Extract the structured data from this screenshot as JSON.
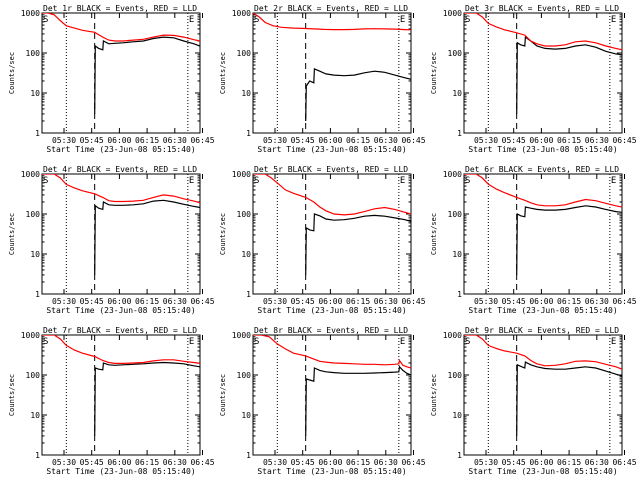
{
  "figure": {
    "shared_xlabel": "Start Time (23-Jun-08 05:15:40)",
    "ylabel": "Counts/sec",
    "x_ticks": [
      "05:30",
      "05:45",
      "06:00",
      "06:15",
      "06:30",
      "06:45"
    ],
    "y_ticks": [
      "1",
      "10",
      "100",
      "1000"
    ],
    "markers": {
      "start": "S",
      "end": "E"
    },
    "colors": {
      "events": "#000000",
      "lld": "#ff0000",
      "axes": "#000000"
    }
  },
  "chart_data": [
    {
      "type": "line",
      "title": "Det 1r BLACK = Events, RED = LLD",
      "xlabel": "Start Time (23-Jun-08 05:15:40)",
      "ylabel": "Counts/sec",
      "x_unit": "minutes after 05:15:40",
      "ylim": [
        1,
        1000
      ],
      "yscale": "log",
      "vlines": {
        "dotted": [
          12,
          72
        ],
        "dashed": [
          26
        ]
      },
      "series": [
        {
          "name": "Events",
          "x": [
            26,
            26.3,
            28,
            30,
            30.3,
            33,
            36,
            40,
            45,
            50,
            55,
            60,
            65,
            70,
            75,
            78
          ],
          "values": [
            3,
            150,
            130,
            120,
            200,
            170,
            175,
            180,
            190,
            200,
            230,
            250,
            240,
            200,
            170,
            150
          ]
        },
        {
          "name": "LLD",
          "x": [
            0,
            3,
            6,
            9,
            12,
            16,
            20,
            26,
            30,
            33,
            36,
            40,
            45,
            50,
            55,
            60,
            65,
            70,
            75,
            78
          ],
          "values": [
            1000,
            1000,
            900,
            650,
            480,
            420,
            370,
            330,
            250,
            210,
            200,
            200,
            210,
            220,
            250,
            280,
            275,
            250,
            215,
            200
          ]
        }
      ]
    },
    {
      "type": "line",
      "title": "Det 2r BLACK = Events, RED = LLD",
      "xlabel": "Start Time (23-Jun-08 05:15:40)",
      "ylabel": "Counts/sec",
      "x_unit": "minutes after 05:15:40",
      "ylim": [
        1,
        1000
      ],
      "yscale": "log",
      "vlines": {
        "dotted": [
          12,
          72
        ],
        "dashed": [
          26
        ]
      },
      "series": [
        {
          "name": "Events",
          "x": [
            26,
            26.3,
            28,
            30,
            30.3,
            33,
            36,
            40,
            45,
            50,
            55,
            60,
            65,
            70,
            75,
            78
          ],
          "values": [
            2,
            15,
            20,
            18,
            40,
            35,
            30,
            28,
            27,
            28,
            32,
            35,
            33,
            28,
            24,
            22
          ]
        },
        {
          "name": "LLD",
          "x": [
            0,
            3,
            6,
            10,
            14,
            20,
            26,
            30,
            35,
            40,
            45,
            50,
            55,
            60,
            65,
            70,
            75,
            78
          ],
          "values": [
            1000,
            800,
            580,
            480,
            440,
            420,
            410,
            400,
            390,
            385,
            385,
            390,
            400,
            405,
            400,
            395,
            385,
            380
          ]
        }
      ]
    },
    {
      "type": "line",
      "title": "Det 3r BLACK = Events, RED = LLD",
      "xlabel": "Start Time (23-Jun-08 05:15:40)",
      "ylabel": "Counts/sec",
      "x_unit": "minutes after 05:15:40",
      "ylim": [
        1,
        1000
      ],
      "yscale": "log",
      "vlines": {
        "dotted": [
          12,
          72
        ],
        "dashed": [
          26
        ]
      },
      "series": [
        {
          "name": "Events",
          "x": [
            26,
            26.3,
            28,
            30,
            30.3,
            33,
            36,
            40,
            45,
            50,
            55,
            60,
            65,
            70,
            75,
            78
          ],
          "values": [
            3,
            180,
            160,
            150,
            250,
            200,
            150,
            130,
            125,
            130,
            150,
            160,
            140,
            110,
            95,
            90
          ]
        },
        {
          "name": "LLD",
          "x": [
            0,
            3,
            6,
            9,
            12,
            16,
            20,
            26,
            30,
            33,
            36,
            40,
            45,
            50,
            55,
            60,
            65,
            70,
            75,
            78
          ],
          "values": [
            1000,
            1000,
            1000,
            800,
            550,
            450,
            380,
            320,
            280,
            200,
            170,
            150,
            150,
            160,
            190,
            200,
            180,
            150,
            130,
            120
          ]
        }
      ]
    },
    {
      "type": "line",
      "title": "Det 4r BLACK = Events, RED = LLD",
      "xlabel": "Start Time (23-Jun-08 05:15:40)",
      "ylabel": "Counts/sec",
      "x_unit": "minutes after 05:15:40",
      "ylim": [
        1,
        1000
      ],
      "yscale": "log",
      "vlines": {
        "dotted": [
          12,
          72
        ],
        "dashed": [
          26
        ]
      },
      "series": [
        {
          "name": "Events",
          "x": [
            26,
            26.3,
            28,
            30,
            30.3,
            33,
            36,
            40,
            45,
            50,
            55,
            60,
            65,
            70,
            75,
            78
          ],
          "values": [
            3,
            160,
            140,
            130,
            200,
            170,
            165,
            165,
            170,
            180,
            210,
            220,
            200,
            175,
            155,
            145
          ]
        },
        {
          "name": "LLD",
          "x": [
            0,
            3,
            6,
            9,
            12,
            16,
            20,
            26,
            30,
            33,
            36,
            40,
            45,
            50,
            55,
            60,
            65,
            70,
            75,
            78
          ],
          "values": [
            1000,
            1000,
            1000,
            800,
            550,
            450,
            380,
            320,
            260,
            215,
            205,
            205,
            210,
            220,
            260,
            300,
            280,
            240,
            210,
            190
          ]
        }
      ]
    },
    {
      "type": "line",
      "title": "Det 5r BLACK = Events, RED = LLD",
      "xlabel": "Start Time (23-Jun-08 05:15:40)",
      "ylabel": "Counts/sec",
      "x_unit": "minutes after 05:15:40",
      "ylim": [
        1,
        1000
      ],
      "yscale": "log",
      "vlines": {
        "dotted": [
          12,
          72
        ],
        "dashed": [
          26
        ]
      },
      "series": [
        {
          "name": "Events",
          "x": [
            26,
            26.3,
            28,
            30,
            30.3,
            33,
            36,
            40,
            45,
            50,
            55,
            60,
            65,
            70,
            75,
            78
          ],
          "values": [
            3,
            45,
            40,
            38,
            100,
            90,
            75,
            70,
            72,
            78,
            88,
            92,
            88,
            80,
            72,
            65
          ]
        },
        {
          "name": "LLD",
          "x": [
            0,
            3,
            6,
            9,
            12,
            16,
            20,
            26,
            30,
            33,
            36,
            40,
            45,
            50,
            55,
            60,
            65,
            70,
            75,
            78
          ],
          "values": [
            1000,
            1000,
            1000,
            800,
            600,
            400,
            330,
            260,
            200,
            150,
            120,
            100,
            95,
            100,
            115,
            135,
            145,
            130,
            110,
            100
          ]
        }
      ]
    },
    {
      "type": "line",
      "title": "Det 6r BLACK = Events, RED = LLD",
      "xlabel": "Start Time (23-Jun-08 05:15:40)",
      "ylabel": "Counts/sec",
      "x_unit": "minutes after 05:15:40",
      "ylim": [
        1,
        1000
      ],
      "yscale": "log",
      "vlines": {
        "dotted": [
          12,
          72
        ],
        "dashed": [
          26
        ]
      },
      "series": [
        {
          "name": "Events",
          "x": [
            26,
            26.3,
            28,
            30,
            30.3,
            33,
            36,
            40,
            45,
            50,
            55,
            60,
            65,
            70,
            75,
            78
          ],
          "values": [
            3,
            100,
            90,
            85,
            150,
            140,
            130,
            125,
            125,
            130,
            145,
            160,
            150,
            130,
            115,
            110
          ]
        },
        {
          "name": "LLD",
          "x": [
            0,
            3,
            6,
            9,
            12,
            16,
            20,
            26,
            30,
            33,
            36,
            40,
            45,
            50,
            55,
            60,
            65,
            70,
            75,
            78
          ],
          "values": [
            1000,
            1000,
            1000,
            800,
            560,
            420,
            340,
            260,
            220,
            190,
            170,
            160,
            160,
            170,
            200,
            230,
            215,
            185,
            160,
            150
          ]
        }
      ]
    },
    {
      "type": "line",
      "title": "Det 7r BLACK = Events, RED = LLD",
      "xlabel": "Start Time (23-Jun-08 05:15:40)",
      "ylabel": "Counts/sec",
      "x_unit": "minutes after 05:15:40",
      "ylim": [
        1,
        1000
      ],
      "yscale": "log",
      "vlines": {
        "dotted": [
          12,
          72
        ],
        "dashed": [
          26
        ]
      },
      "series": [
        {
          "name": "Events",
          "x": [
            26,
            26.3,
            28,
            30,
            30.3,
            33,
            36,
            40,
            45,
            50,
            55,
            60,
            65,
            70,
            75,
            78
          ],
          "values": [
            3,
            150,
            140,
            135,
            200,
            180,
            175,
            180,
            185,
            190,
            200,
            205,
            200,
            190,
            170,
            160
          ]
        },
        {
          "name": "LLD",
          "x": [
            0,
            3,
            6,
            9,
            12,
            16,
            20,
            26,
            30,
            33,
            36,
            40,
            45,
            50,
            55,
            60,
            65,
            70,
            75,
            78
          ],
          "values": [
            1000,
            1000,
            1000,
            800,
            550,
            420,
            350,
            290,
            230,
            205,
            195,
            195,
            200,
            205,
            225,
            240,
            240,
            220,
            205,
            195
          ]
        }
      ]
    },
    {
      "type": "line",
      "title": "Det 8r BLACK = Events, RED = LLD",
      "xlabel": "Start Time (23-Jun-08 05:15:40)",
      "ylabel": "Counts/sec",
      "x_unit": "minutes after 05:15:40",
      "ylim": [
        1,
        1000
      ],
      "yscale": "log",
      "vlines": {
        "dotted": [
          12,
          72
        ],
        "dashed": [
          26
        ]
      },
      "series": [
        {
          "name": "Events",
          "x": [
            26,
            26.3,
            28,
            30,
            30.3,
            33,
            36,
            40,
            45,
            50,
            55,
            60,
            65,
            70,
            72,
            72.3,
            74,
            76,
            78
          ],
          "values": [
            3,
            80,
            75,
            70,
            150,
            130,
            120,
            115,
            110,
            110,
            110,
            112,
            115,
            118,
            120,
            160,
            130,
            110,
            100
          ]
        },
        {
          "name": "LLD",
          "x": [
            0,
            4,
            8,
            12,
            16,
            20,
            26,
            30,
            33,
            36,
            40,
            45,
            50,
            55,
            60,
            65,
            70,
            72,
            72.3,
            74,
            76,
            78
          ],
          "values": [
            1000,
            1000,
            900,
            600,
            450,
            350,
            300,
            250,
            220,
            210,
            200,
            195,
            190,
            185,
            185,
            180,
            185,
            190,
            230,
            175,
            160,
            150
          ]
        }
      ]
    },
    {
      "type": "line",
      "title": "Det 9r BLACK = Events, RED = LLD",
      "xlabel": "Start Time (23-Jun-08 05:15:40)",
      "ylabel": "Counts/sec",
      "x_unit": "minutes after 05:15:40",
      "ylim": [
        1,
        1000
      ],
      "yscale": "log",
      "vlines": {
        "dotted": [
          12,
          72
        ],
        "dashed": [
          26
        ]
      },
      "series": [
        {
          "name": "Events",
          "x": [
            26,
            26.3,
            28,
            30,
            30.3,
            33,
            36,
            40,
            45,
            50,
            55,
            60,
            65,
            70,
            75,
            78
          ],
          "values": [
            3,
            180,
            165,
            150,
            210,
            180,
            160,
            145,
            140,
            140,
            150,
            160,
            150,
            125,
            105,
            95
          ]
        },
        {
          "name": "LLD",
          "x": [
            0,
            3,
            6,
            9,
            12,
            16,
            20,
            26,
            30,
            33,
            36,
            40,
            45,
            50,
            55,
            60,
            65,
            70,
            75,
            78
          ],
          "values": [
            1000,
            1000,
            1000,
            800,
            550,
            460,
            400,
            350,
            300,
            230,
            190,
            170,
            175,
            190,
            220,
            225,
            215,
            185,
            160,
            140
          ]
        }
      ]
    }
  ]
}
